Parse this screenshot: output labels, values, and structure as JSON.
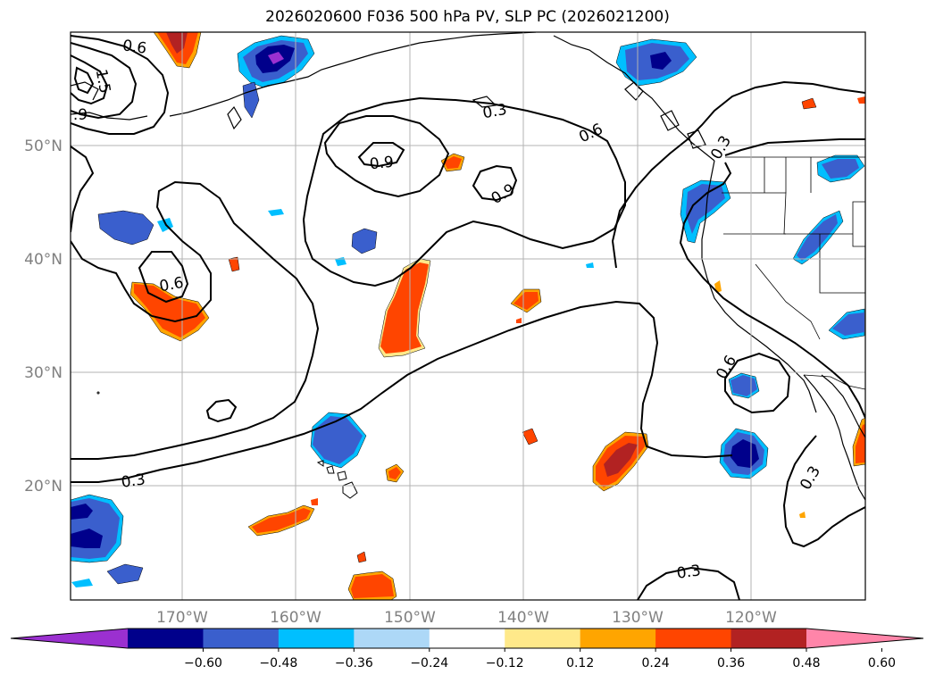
{
  "title": "2026020600 F036 500 hPa PV, SLP PC (2026021200)",
  "lat_labels": [
    "50°N",
    "40°N",
    "30°N",
    "20°N"
  ],
  "lon_labels": [
    "170°W",
    "160°W",
    "150°W",
    "140°W",
    "130°W",
    "120°W"
  ],
  "contour_labels": [
    "0.6",
    "1.5",
    ".9",
    "0.3",
    "0.9",
    "0.6",
    "0.9",
    "0.3",
    "0.6",
    "0.6",
    "0.3",
    "0.3",
    "0.3"
  ],
  "colorbar": {
    "ticks": [
      "−0.60",
      "−0.48",
      "−0.36",
      "−0.24",
      "−0.12",
      "0.12",
      "0.24",
      "0.36",
      "0.48",
      "0.60"
    ],
    "colors": [
      "#9b30d0",
      "#00008b",
      "#3a5fcd",
      "#00bfff",
      "#add8f7",
      "#ffffff",
      "#ffe98a",
      "#ffa500",
      "#ff4500",
      "#b22222",
      "#ff85a9"
    ]
  },
  "colors": {
    "grid": "#b3b3b3",
    "axis_text": "#808080",
    "contour": "#000000"
  }
}
